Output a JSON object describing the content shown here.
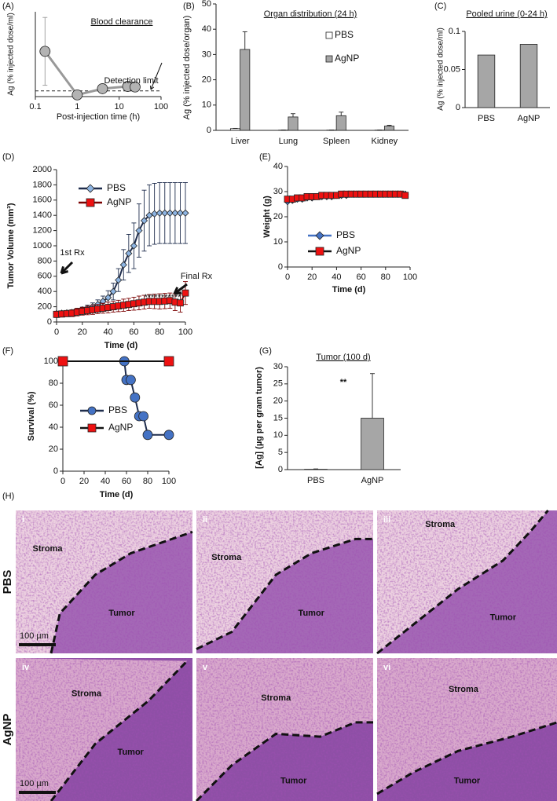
{
  "chart_data": [
    {
      "panel": "(A)",
      "type": "line",
      "title": "Blood clearance",
      "xlabel": "Post-injection time (h)",
      "ylabel": "Ag (% injected dose/ml)",
      "xlog": true,
      "xlim": [
        0.1,
        100
      ],
      "xticks": [
        0.1,
        1,
        10,
        100
      ],
      "ylim": [
        0,
        15
      ],
      "x": [
        0.17,
        1,
        4,
        16,
        24
      ],
      "values": [
        8,
        0.3,
        1.4,
        1.8,
        1.7
      ],
      "errors": [
        6,
        0.3,
        0.6,
        0.5,
        0.3
      ],
      "color": "#b3b3b3",
      "line_color": "#999999",
      "marker": "circle",
      "reference_line": 1,
      "annotations": [
        "Detection limit"
      ]
    },
    {
      "panel": "(B)",
      "type": "bar",
      "title": "Organ distribution (24 h)",
      "ylabel": "Ag (% injected dose/organ)",
      "categories": [
        "Liver",
        "Lung",
        "Spleen",
        "Kidney"
      ],
      "ylim": [
        0,
        50
      ],
      "yticks": [
        0,
        10,
        20,
        30,
        40,
        50
      ],
      "series": [
        {
          "name": "PBS",
          "color": "#ffffff",
          "values": [
            0.7,
            0.1,
            0.1,
            0.1
          ],
          "errors": [
            0.1,
            0.05,
            0.05,
            0.05
          ]
        },
        {
          "name": "AgNP",
          "color": "#a6a6a6",
          "values": [
            32,
            5.3,
            5.8,
            1.7
          ],
          "errors": [
            7,
            1.3,
            1.4,
            0.3
          ]
        }
      ]
    },
    {
      "panel": "(C)",
      "type": "bar",
      "title": "Pooled urine (0-24 h)",
      "ylabel": "Ag (% injected dose/ml)",
      "categories": [
        "PBS",
        "AgNP"
      ],
      "values": [
        0.069,
        0.083
      ],
      "color": "#a6a6a6",
      "ylim": [
        0,
        0.1
      ],
      "yticks": [
        0,
        0.05,
        0.1
      ]
    },
    {
      "panel": "(D)",
      "type": "line",
      "xlabel": "Time (d)",
      "ylabel": "Tumor Volume (mm³)",
      "xlim": [
        0,
        100
      ],
      "xticks": [
        0,
        20,
        40,
        60,
        80,
        100
      ],
      "ylim": [
        0,
        2000
      ],
      "yticks": [
        0,
        200,
        400,
        600,
        800,
        1000,
        1200,
        1400,
        1600,
        1800,
        2000
      ],
      "x": [
        0,
        4,
        8,
        12,
        16,
        20,
        24,
        28,
        32,
        36,
        40,
        44,
        48,
        52,
        56,
        60,
        64,
        68,
        72,
        76,
        80,
        84,
        88,
        92,
        96,
        100
      ],
      "series": [
        {
          "name": "PBS",
          "color": "#8db4e2",
          "line_color": "#1f2d4d",
          "marker": "diamond",
          "values": [
            110,
            115,
            120,
            125,
            140,
            160,
            180,
            200,
            230,
            270,
            320,
            400,
            550,
            750,
            900,
            1000,
            1200,
            1330,
            1400,
            1420,
            1430,
            1430,
            1430,
            1430,
            1430,
            1430
          ],
          "errors": [
            20,
            20,
            25,
            25,
            30,
            35,
            40,
            50,
            60,
            70,
            90,
            110,
            150,
            200,
            250,
            300,
            350,
            400,
            400,
            400,
            400,
            400,
            400,
            400,
            400,
            400
          ]
        },
        {
          "name": "AgNP",
          "color": "#ee1111",
          "line_color": "#7a0000",
          "marker": "square",
          "values": [
            100,
            105,
            110,
            115,
            130,
            140,
            150,
            160,
            170,
            180,
            190,
            200,
            210,
            220,
            230,
            240,
            250,
            260,
            270,
            270,
            270,
            275,
            280,
            260,
            250,
            380
          ],
          "errors": [
            40,
            40,
            40,
            45,
            50,
            50,
            55,
            60,
            60,
            65,
            70,
            70,
            75,
            80,
            80,
            85,
            90,
            90,
            90,
            95,
            100,
            100,
            100,
            110,
            120,
            150
          ]
        }
      ],
      "annotations": [
        "1st Rx",
        "Final Rx",
        "***********"
      ]
    },
    {
      "panel": "(E)",
      "type": "line",
      "xlabel": "Time (d)",
      "ylabel": "Weight (g)",
      "xlim": [
        0,
        100
      ],
      "xticks": [
        0,
        20,
        40,
        60,
        80,
        100
      ],
      "ylim": [
        0,
        40
      ],
      "yticks": [
        0,
        10,
        20,
        30,
        40
      ],
      "x": [
        0,
        4,
        8,
        12,
        16,
        20,
        24,
        28,
        32,
        36,
        40,
        44,
        48,
        52,
        56,
        60,
        64,
        68,
        72,
        76,
        80,
        84,
        88,
        92,
        96
      ],
      "series": [
        {
          "name": "PBS",
          "color": "#4472c4",
          "line_color": "#4472c4",
          "marker": "diamond",
          "values": [
            26,
            26.5,
            27,
            27,
            27.5,
            27.5,
            28,
            28,
            28,
            28,
            28.5,
            28.5,
            28.5,
            29,
            29,
            29,
            29,
            29,
            29,
            29,
            29,
            29,
            29,
            29,
            29
          ]
        },
        {
          "name": "AgNP",
          "color": "#ee1111",
          "line_color": "#111111",
          "marker": "square",
          "values": [
            27,
            27,
            27.5,
            27.5,
            28,
            28,
            28,
            28.5,
            28.5,
            28.5,
            28.5,
            29,
            29,
            29,
            29,
            29,
            29,
            29,
            29,
            29,
            29,
            29,
            29,
            29,
            28.5
          ]
        }
      ]
    },
    {
      "panel": "(F)",
      "type": "line",
      "xlabel": "Time (d)",
      "ylabel": "Survival (%)",
      "xlim": [
        0,
        100
      ],
      "xticks": [
        0,
        20,
        40,
        60,
        80,
        100
      ],
      "ylim": [
        0,
        100
      ],
      "yticks": [
        0,
        20,
        40,
        60,
        80,
        100
      ],
      "series": [
        {
          "name": "PBS",
          "color": "#4472c4",
          "line_color": "#1f2d4d",
          "marker": "circle",
          "x": [
            58,
            60,
            64,
            68,
            72,
            76,
            80,
            100
          ],
          "values": [
            100,
            83,
            83,
            67,
            50,
            50,
            33,
            33
          ]
        },
        {
          "name": "AgNP",
          "color": "#ee1111",
          "line_color": "#111111",
          "marker": "square",
          "x": [
            0,
            100
          ],
          "values": [
            100,
            100
          ]
        }
      ]
    },
    {
      "panel": "(G)",
      "type": "bar",
      "title": "Tumor (100 d)",
      "ylabel": "[Ag] (µg per gram tumor)",
      "categories": [
        "PBS",
        "AgNP"
      ],
      "values": [
        0.1,
        15
      ],
      "errors": [
        0.1,
        13
      ],
      "color": "#a6a6a6",
      "ylim": [
        0,
        30
      ],
      "yticks": [
        0,
        5,
        10,
        15,
        20,
        25,
        30
      ],
      "annotations": [
        "**"
      ]
    }
  ],
  "histology": {
    "panel": "(H)",
    "rows": [
      "PBS",
      "AgNP"
    ],
    "images": [
      {
        "numeral": "i",
        "regions": [
          "Stroma",
          "Tumor"
        ],
        "scale_bar": "100 µm"
      },
      {
        "numeral": "ii",
        "regions": [
          "Stroma",
          "Tumor"
        ]
      },
      {
        "numeral": "iii",
        "regions": [
          "Stroma",
          "Tumor"
        ]
      },
      {
        "numeral": "iv",
        "regions": [
          "Stroma",
          "Tumor"
        ],
        "scale_bar": "100 µm"
      },
      {
        "numeral": "v",
        "regions": [
          "Stroma",
          "Tumor"
        ]
      },
      {
        "numeral": "vi",
        "regions": [
          "Stroma",
          "Tumor"
        ]
      }
    ]
  }
}
